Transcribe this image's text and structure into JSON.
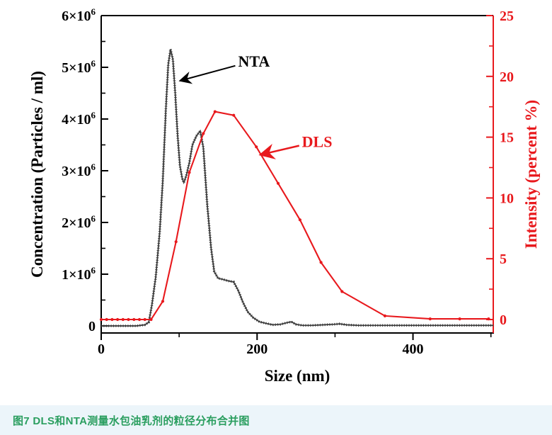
{
  "caption": {
    "text": "图7 DLS和NTA测量水包油乳剂的粒径分布合并图",
    "text_color": "#2a9e5f",
    "bar_bg": "#ecf5fa"
  },
  "chart_data": {
    "type": "line",
    "title": "",
    "xlabel": "Size (nm)",
    "xlim": [
      0,
      503
    ],
    "x_ticks": [
      {
        "value": 0,
        "label": "0"
      },
      {
        "value": 200,
        "label": "200"
      },
      {
        "value": 400,
        "label": "400"
      }
    ],
    "x_minor_ticks": [
      100,
      300,
      500
    ],
    "left_axis": {
      "label": "Concentration (Particles / ml)",
      "color": "#000000",
      "values_unit": "10^6 particles per ml",
      "min": -0.137,
      "max": 6,
      "ticks": [
        {
          "value": 0,
          "label": "0"
        },
        {
          "value": 1,
          "label": "1×10^6"
        },
        {
          "value": 2,
          "label": "2×10^6"
        },
        {
          "value": 3,
          "label": "3×10^6"
        },
        {
          "value": 4,
          "label": "4×10^6"
        },
        {
          "value": 5,
          "label": "5×10^6"
        },
        {
          "value": 6,
          "label": "6×10^6"
        }
      ],
      "minor_step": 0.5
    },
    "right_axis": {
      "label": "Intensity (percent %)",
      "color": "#e8191d",
      "values_unit": "percent",
      "min": -1.107,
      "max": 25,
      "ticks": [
        {
          "value": 0,
          "label": "0"
        },
        {
          "value": 5,
          "label": "5"
        },
        {
          "value": 10,
          "label": "10"
        },
        {
          "value": 15,
          "label": "15"
        },
        {
          "value": 20,
          "label": "20"
        },
        {
          "value": 25,
          "label": "25"
        }
      ],
      "minor_step": 2.5
    },
    "series": [
      {
        "name": "NTA",
        "axis": "left",
        "color": "#3a3a3a",
        "style": "beaded",
        "points": [
          [
            0,
            0
          ],
          [
            15,
            0
          ],
          [
            30,
            0
          ],
          [
            45,
            0
          ],
          [
            56,
            0.02
          ],
          [
            61,
            0.07
          ],
          [
            65,
            0.4
          ],
          [
            70,
            0.95
          ],
          [
            75,
            1.8
          ],
          [
            79,
            2.8
          ],
          [
            83,
            4.2
          ],
          [
            86,
            5.05
          ],
          [
            89,
            5.35
          ],
          [
            92,
            5.15
          ],
          [
            95,
            4.5
          ],
          [
            98,
            3.7
          ],
          [
            101,
            3.1
          ],
          [
            104,
            2.85
          ],
          [
            106,
            2.77
          ],
          [
            109,
            2.9
          ],
          [
            113,
            3.15
          ],
          [
            117,
            3.5
          ],
          [
            122,
            3.67
          ],
          [
            127,
            3.77
          ],
          [
            131,
            3.45
          ],
          [
            136,
            2.35
          ],
          [
            141,
            1.5
          ],
          [
            145,
            1.05
          ],
          [
            150,
            0.92
          ],
          [
            156,
            0.9
          ],
          [
            163,
            0.87
          ],
          [
            170,
            0.85
          ],
          [
            176,
            0.68
          ],
          [
            182,
            0.45
          ],
          [
            188,
            0.27
          ],
          [
            195,
            0.16
          ],
          [
            203,
            0.08
          ],
          [
            211,
            0.05
          ],
          [
            220,
            0.02
          ],
          [
            230,
            0.03
          ],
          [
            238,
            0.06
          ],
          [
            244,
            0.08
          ],
          [
            250,
            0.03
          ],
          [
            258,
            0.01
          ],
          [
            270,
            0.01
          ],
          [
            285,
            0.02
          ],
          [
            298,
            0.03
          ],
          [
            306,
            0.04
          ],
          [
            315,
            0.02
          ],
          [
            330,
            0.01
          ],
          [
            360,
            0.01
          ],
          [
            400,
            0.01
          ],
          [
            450,
            0.01
          ],
          [
            503,
            0.01
          ]
        ]
      },
      {
        "name": "DLS",
        "axis": "right",
        "color": "#e8191d",
        "style": "line-markers",
        "points": [
          [
            0,
            0
          ],
          [
            7,
            0
          ],
          [
            14,
            0
          ],
          [
            21,
            0
          ],
          [
            28,
            0
          ],
          [
            35,
            0
          ],
          [
            42,
            0
          ],
          [
            49,
            0
          ],
          [
            56,
            0
          ],
          [
            64,
            0
          ],
          [
            79,
            1.5
          ],
          [
            96,
            6.4
          ],
          [
            113,
            12.1
          ],
          [
            131,
            15.3
          ],
          [
            146,
            17.1
          ],
          [
            170,
            16.8
          ],
          [
            199,
            14.2
          ],
          [
            227,
            11.2
          ],
          [
            255,
            8.2
          ],
          [
            282,
            4.7
          ],
          [
            309,
            2.3
          ],
          [
            364,
            0.3
          ],
          [
            422,
            0.05
          ],
          [
            460,
            0.05
          ],
          [
            497,
            0.05
          ]
        ]
      }
    ],
    "annotations": [
      {
        "name": "NTA",
        "text": "NTA",
        "color": "#000000",
        "axis": "left",
        "text_at": [
          196,
          5.12
        ],
        "arrow_from": [
          172,
          5.03
        ],
        "arrow_to": [
          101,
          4.74
        ]
      },
      {
        "name": "DLS",
        "text": "DLS",
        "color": "#e8191d",
        "axis": "right",
        "text_at": [
          277,
          14.65
        ],
        "arrow_from": [
          254,
          14.3
        ],
        "arrow_to": [
          204,
          13.55
        ]
      }
    ]
  }
}
